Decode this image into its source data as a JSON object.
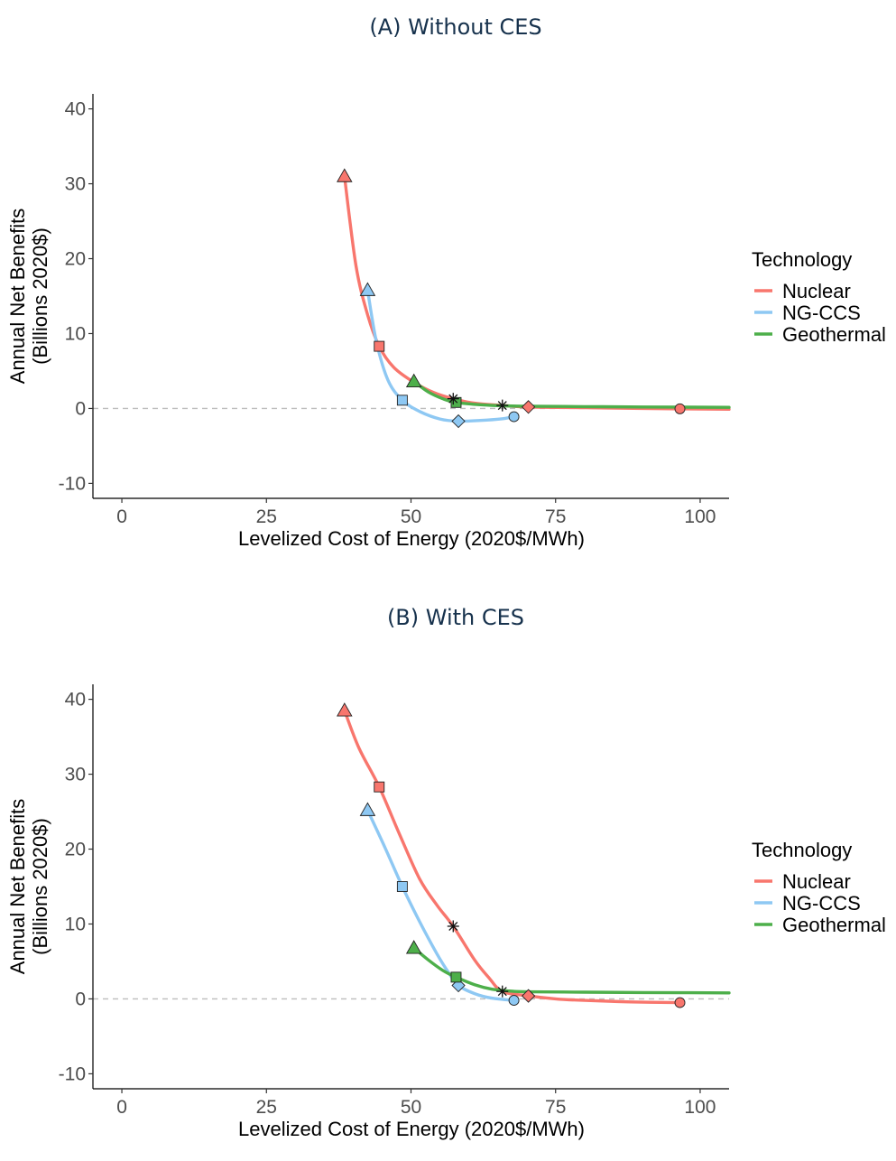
{
  "chart_data": [
    {
      "type": "line",
      "title": "(A) Without CES",
      "xlabel": "Levelized Cost of Energy (2020$/MWh)",
      "ylabel_line1": "Annual Net Benefits",
      "ylabel_line2": "(Billions 2020$)",
      "xlim": [
        -5,
        105
      ],
      "ylim": [
        -12,
        42
      ],
      "xticks": [
        "0",
        "25",
        "50",
        "75",
        "100"
      ],
      "yticks": [
        "-10",
        "0",
        "10",
        "20",
        "30",
        "40"
      ],
      "zero_reference_line": "dashed grey at y = 0",
      "grid": false,
      "legend": {
        "title": "Technology",
        "placement": "right"
      },
      "series": [
        {
          "name": "Nuclear",
          "color": "#F8766D",
          "curve": [
            [
              38.5,
              31
            ],
            [
              40.5,
              19
            ],
            [
              42.5,
              12.5
            ],
            [
              44.5,
              8.3
            ],
            [
              47,
              5.5
            ],
            [
              50.5,
              3.5
            ],
            [
              54,
              2.1
            ],
            [
              57.3,
              1.3
            ],
            [
              61,
              0.7
            ],
            [
              65.8,
              0.4
            ],
            [
              70.3,
              0.2
            ],
            [
              80,
              0.1
            ],
            [
              90,
              0.0
            ],
            [
              96.5,
              -0.05
            ],
            [
              105,
              -0.1
            ]
          ],
          "points": [
            {
              "x": 38.5,
              "y": 31,
              "shape": "triangle"
            },
            {
              "x": 44.5,
              "y": 8.3,
              "shape": "square"
            },
            {
              "x": 70.3,
              "y": 0.2,
              "shape": "diamond"
            },
            {
              "x": 96.5,
              "y": -0.05,
              "shape": "circle"
            }
          ]
        },
        {
          "name": "NG-CCS",
          "color": "#8EC8F3",
          "curve": [
            [
              42.5,
              15.8
            ],
            [
              44,
              9
            ],
            [
              46,
              3.8
            ],
            [
              48.5,
              1.1
            ],
            [
              51.5,
              -0.4
            ],
            [
              55,
              -1.4
            ],
            [
              58.2,
              -1.7
            ],
            [
              62,
              -1.6
            ],
            [
              65.5,
              -1.4
            ],
            [
              67.8,
              -1.1
            ]
          ],
          "points": [
            {
              "x": 42.5,
              "y": 15.8,
              "shape": "triangle"
            },
            {
              "x": 48.5,
              "y": 1.1,
              "shape": "square"
            },
            {
              "x": 58.2,
              "y": -1.7,
              "shape": "diamond"
            },
            {
              "x": 67.8,
              "y": -1.1,
              "shape": "circle"
            }
          ]
        },
        {
          "name": "Geothermal",
          "color": "#4DAF4A",
          "curve": [
            [
              50.5,
              3.6
            ],
            [
              53,
              2.2
            ],
            [
              55.5,
              1.3
            ],
            [
              57.8,
              0.8
            ],
            [
              62,
              0.5
            ],
            [
              66,
              0.35
            ],
            [
              70,
              0.3
            ],
            [
              80,
              0.25
            ],
            [
              90,
              0.2
            ],
            [
              105,
              0.15
            ]
          ],
          "points": [
            {
              "x": 50.5,
              "y": 3.6,
              "shape": "triangle"
            },
            {
              "x": 57.8,
              "y": 0.8,
              "shape": "square"
            }
          ]
        }
      ],
      "star_markers": [
        {
          "x": 57.3,
          "y": 1.3
        },
        {
          "x": 65.8,
          "y": 0.4
        }
      ]
    },
    {
      "type": "line",
      "title": "(B) With CES",
      "xlabel": "Levelized Cost of Energy (2020$/MWh)",
      "ylabel_line1": "Annual Net Benefits",
      "ylabel_line2": "(Billions 2020$)",
      "xlim": [
        -5,
        105
      ],
      "ylim": [
        -12,
        42
      ],
      "xticks": [
        "0",
        "25",
        "50",
        "75",
        "100"
      ],
      "yticks": [
        "-10",
        "0",
        "10",
        "20",
        "30",
        "40"
      ],
      "zero_reference_line": "dashed grey at y = 0",
      "grid": false,
      "legend": {
        "title": "Technology",
        "placement": "right"
      },
      "series": [
        {
          "name": "Nuclear",
          "color": "#F8766D",
          "curve": [
            [
              38.5,
              38.5
            ],
            [
              41,
              33.5
            ],
            [
              44.5,
              28.3
            ],
            [
              48,
              22
            ],
            [
              51.5,
              16
            ],
            [
              54.5,
              12.5
            ],
            [
              57.3,
              9.7
            ],
            [
              61,
              5.2
            ],
            [
              63.5,
              2.8
            ],
            [
              65.8,
              1.0
            ],
            [
              70.3,
              0.4
            ],
            [
              75,
              0.0
            ],
            [
              80,
              -0.2
            ],
            [
              88,
              -0.4
            ],
            [
              96.5,
              -0.5
            ]
          ],
          "points": [
            {
              "x": 38.5,
              "y": 38.5,
              "shape": "triangle"
            },
            {
              "x": 44.5,
              "y": 28.3,
              "shape": "square"
            },
            {
              "x": 70.3,
              "y": 0.4,
              "shape": "diamond"
            },
            {
              "x": 96.5,
              "y": -0.5,
              "shape": "circle"
            }
          ]
        },
        {
          "name": "NG-CCS",
          "color": "#8EC8F3",
          "curve": [
            [
              42.5,
              25.2
            ],
            [
              45.5,
              20.2
            ],
            [
              48.5,
              15.0
            ],
            [
              51.5,
              10.3
            ],
            [
              54.5,
              6.0
            ],
            [
              56.5,
              3.5
            ],
            [
              58.2,
              1.8
            ],
            [
              61,
              0.7
            ],
            [
              64,
              0.1
            ],
            [
              67.8,
              -0.2
            ]
          ],
          "points": [
            {
              "x": 42.5,
              "y": 25.2,
              "shape": "triangle"
            },
            {
              "x": 48.5,
              "y": 15.0,
              "shape": "square"
            },
            {
              "x": 58.2,
              "y": 1.8,
              "shape": "diamond"
            },
            {
              "x": 67.8,
              "y": -0.2,
              "shape": "circle"
            }
          ]
        },
        {
          "name": "Geothermal",
          "color": "#4DAF4A",
          "curve": [
            [
              50.5,
              6.8
            ],
            [
              53,
              5.2
            ],
            [
              55.5,
              3.8
            ],
            [
              57.8,
              2.9
            ],
            [
              61,
              1.9
            ],
            [
              64,
              1.3
            ],
            [
              67,
              1.05
            ],
            [
              70,
              0.95
            ],
            [
              80,
              0.9
            ],
            [
              90,
              0.85
            ],
            [
              105,
              0.8
            ]
          ],
          "points": [
            {
              "x": 50.5,
              "y": 6.8,
              "shape": "triangle"
            },
            {
              "x": 57.8,
              "y": 2.9,
              "shape": "square"
            }
          ]
        }
      ],
      "star_markers": [
        {
          "x": 57.3,
          "y": 9.7
        },
        {
          "x": 65.8,
          "y": 1.0
        }
      ]
    }
  ]
}
